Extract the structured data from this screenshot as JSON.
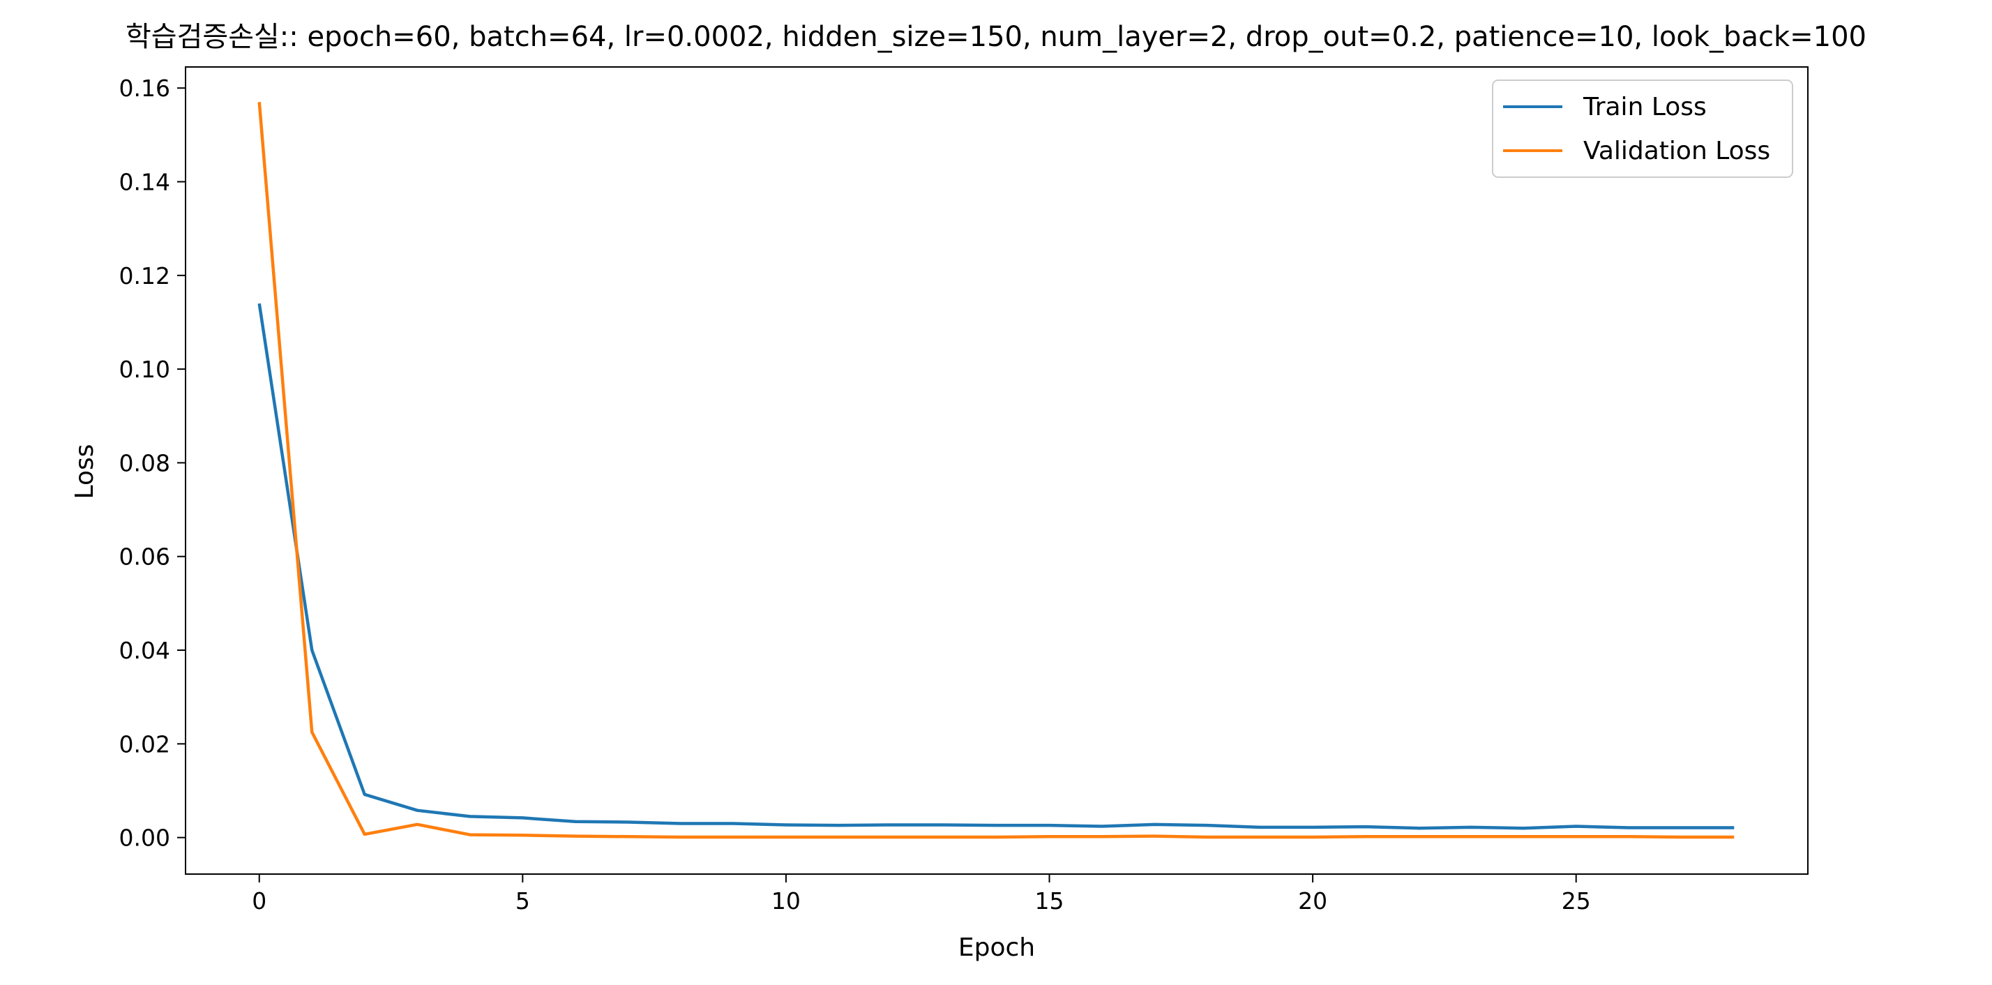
{
  "chart_data": {
    "type": "line",
    "title": "학습검증손실:: epoch=60, batch=64, lr=0.0002, hidden_size=150, num_layer=2, drop_out=0.2, patience=10, look_back=100",
    "xlabel": "Epoch",
    "ylabel": "Loss",
    "xlim": [
      -1.4,
      29.4
    ],
    "ylim": [
      -0.0078,
      0.1645
    ],
    "xticks": [
      0,
      5,
      10,
      15,
      20,
      25
    ],
    "xtick_labels": [
      "0",
      "5",
      "10",
      "15",
      "20",
      "25"
    ],
    "yticks": [
      0.0,
      0.02,
      0.04,
      0.06,
      0.08,
      0.1,
      0.12,
      0.14,
      0.16
    ],
    "ytick_labels": [
      "0.00",
      "0.02",
      "0.04",
      "0.06",
      "0.08",
      "0.10",
      "0.12",
      "0.14",
      "0.16"
    ],
    "grid": false,
    "legend_position": "top-right",
    "x": [
      0,
      1,
      2,
      3,
      4,
      5,
      6,
      7,
      8,
      9,
      10,
      11,
      12,
      13,
      14,
      15,
      16,
      17,
      18,
      19,
      20,
      21,
      22,
      23,
      24,
      25,
      26,
      27,
      28
    ],
    "series": [
      {
        "name": "Train Loss",
        "color": "#1f77b4",
        "values": [
          0.114,
          0.04,
          0.0092,
          0.0058,
          0.0045,
          0.0042,
          0.0034,
          0.0033,
          0.003,
          0.003,
          0.0027,
          0.0026,
          0.0027,
          0.0027,
          0.0026,
          0.0026,
          0.0024,
          0.0028,
          0.0026,
          0.0022,
          0.0022,
          0.0023,
          0.002,
          0.0022,
          0.002,
          0.0024,
          0.0021,
          0.0021,
          0.0021
        ]
      },
      {
        "name": "Validation Loss",
        "color": "#ff7f0e",
        "values": [
          0.157,
          0.0225,
          0.0007,
          0.0028,
          0.0006,
          0.0005,
          0.0003,
          0.0002,
          0.0001,
          0.0001,
          0.0001,
          0.0001,
          0.0001,
          0.0001,
          0.0001,
          0.0002,
          0.0002,
          0.0003,
          0.0001,
          0.0001,
          0.0001,
          0.0002,
          0.0002,
          0.0002,
          0.0002,
          0.0002,
          0.0002,
          0.0001,
          0.0001
        ]
      }
    ]
  }
}
